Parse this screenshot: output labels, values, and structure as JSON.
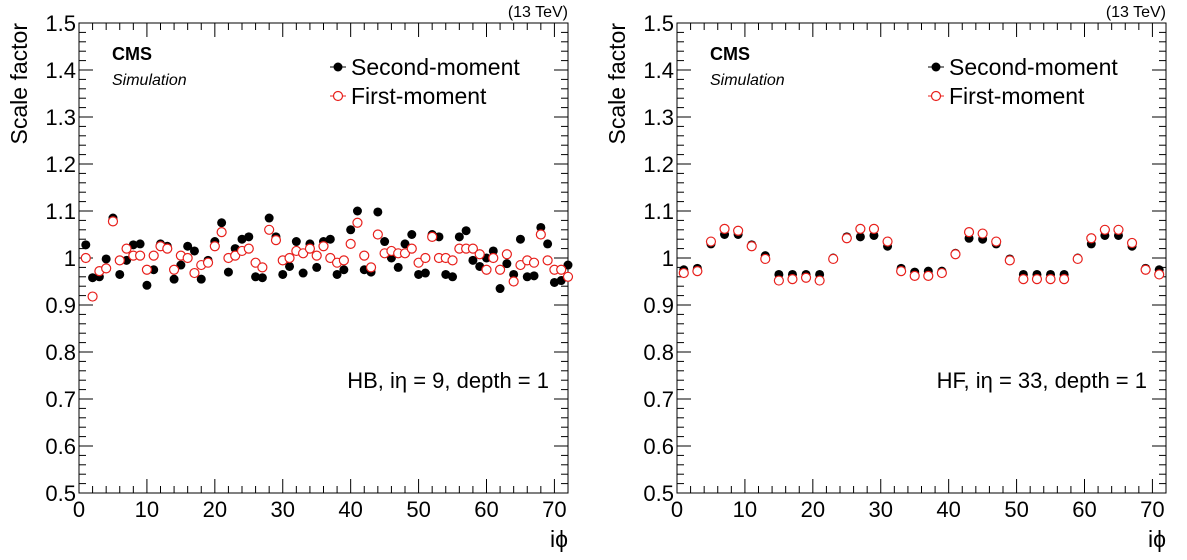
{
  "chart_data": [
    {
      "type": "scatter",
      "energy_label": "(13 TeV)",
      "experiment": "CMS",
      "subtitle": "Simulation",
      "annotation": "HB, iη = 9, depth = 1",
      "xlabel": "iϕ",
      "ylabel": "Scale factor",
      "xlim": [
        0,
        72
      ],
      "ylim": [
        0.5,
        1.5
      ],
      "x_ticks": [
        "0",
        "10",
        "20",
        "30",
        "40",
        "50",
        "60",
        "70"
      ],
      "y_ticks": [
        "0.5",
        "0.6",
        "0.7",
        "0.8",
        "0.9",
        "1",
        "1.1",
        "1.2",
        "1.3",
        "1.4",
        "1.5"
      ],
      "legend_position": "top-right",
      "series": [
        {
          "name": "Second-moment",
          "color": "#000000",
          "marker": "filled-circle",
          "x": [
            1,
            2,
            3,
            4,
            5,
            6,
            7,
            8,
            9,
            10,
            11,
            12,
            13,
            14,
            15,
            16,
            17,
            18,
            19,
            20,
            21,
            22,
            23,
            24,
            25,
            26,
            27,
            28,
            29,
            30,
            31,
            32,
            33,
            34,
            35,
            36,
            37,
            38,
            39,
            40,
            41,
            42,
            43,
            44,
            45,
            46,
            47,
            48,
            49,
            50,
            51,
            52,
            53,
            54,
            55,
            56,
            57,
            58,
            59,
            60,
            61,
            62,
            63,
            64,
            65,
            66,
            67,
            68,
            69,
            70,
            71,
            72
          ],
          "values": [
            1.028,
            0.958,
            0.96,
            0.998,
            1.085,
            0.965,
            0.995,
            1.028,
            1.03,
            0.942,
            0.975,
            1.03,
            1.025,
            0.955,
            0.985,
            1.025,
            1.015,
            0.955,
            0.995,
            1.035,
            1.075,
            0.97,
            1.02,
            1.04,
            1.045,
            0.96,
            0.958,
            1.085,
            1.045,
            0.965,
            0.982,
            1.035,
            0.968,
            1.03,
            0.98,
            1.035,
            1.04,
            0.965,
            0.975,
            1.06,
            1.1,
            0.975,
            0.97,
            1.098,
            1.035,
            1.0,
            0.98,
            1.03,
            1.05,
            0.965,
            0.968,
            1.05,
            1.045,
            0.965,
            0.96,
            1.045,
            1.058,
            0.995,
            0.982,
            1.0,
            1.015,
            0.935,
            0.988,
            0.965,
            1.04,
            0.96,
            0.962,
            1.065,
            1.03,
            0.948,
            0.952,
            0.985
          ]
        },
        {
          "name": "First-moment",
          "color": "#e8201c",
          "marker": "open-circle",
          "x": [
            1,
            2,
            3,
            4,
            5,
            6,
            7,
            8,
            9,
            10,
            11,
            12,
            13,
            14,
            15,
            16,
            17,
            18,
            19,
            20,
            21,
            22,
            23,
            24,
            25,
            26,
            27,
            28,
            29,
            30,
            31,
            32,
            33,
            34,
            35,
            36,
            37,
            38,
            39,
            40,
            41,
            42,
            43,
            44,
            45,
            46,
            47,
            48,
            49,
            50,
            51,
            52,
            53,
            54,
            55,
            56,
            57,
            58,
            59,
            60,
            61,
            62,
            63,
            64,
            65,
            66,
            67,
            68,
            69,
            70,
            71,
            72
          ],
          "values": [
            1.0,
            0.918,
            0.972,
            0.978,
            1.078,
            0.995,
            1.02,
            1.005,
            1.005,
            0.975,
            1.005,
            1.025,
            1.02,
            0.975,
            1.005,
            1.0,
            0.968,
            0.985,
            0.99,
            1.025,
            1.055,
            1.0,
            1.005,
            1.015,
            1.02,
            0.99,
            0.98,
            1.06,
            1.038,
            0.995,
            1.0,
            1.015,
            1.01,
            1.02,
            1.005,
            1.025,
            1.0,
            0.99,
            0.995,
            1.03,
            1.075,
            1.005,
            0.98,
            1.05,
            1.01,
            1.015,
            1.01,
            1.01,
            1.02,
            0.99,
            1.0,
            1.045,
            1.0,
            1.0,
            0.995,
            1.02,
            1.02,
            1.02,
            1.008,
            0.975,
            1.0,
            0.975,
            1.008,
            0.95,
            0.985,
            0.995,
            0.99,
            1.05,
            0.995,
            0.975,
            0.975,
            0.96
          ]
        }
      ]
    },
    {
      "type": "scatter",
      "energy_label": "(13 TeV)",
      "experiment": "CMS",
      "subtitle": "Simulation",
      "annotation": "HF, iη = 33, depth = 1",
      "xlabel": "iϕ",
      "ylabel": "Scale factor",
      "xlim": [
        0,
        72
      ],
      "ylim": [
        0.5,
        1.5
      ],
      "x_ticks": [
        "0",
        "10",
        "20",
        "30",
        "40",
        "50",
        "60",
        "70"
      ],
      "y_ticks": [
        "0.5",
        "0.6",
        "0.7",
        "0.8",
        "0.9",
        "1",
        "1.1",
        "1.2",
        "1.3",
        "1.4",
        "1.5"
      ],
      "legend_position": "top-right",
      "series": [
        {
          "name": "Second-moment",
          "color": "#000000",
          "marker": "filled-circle",
          "x": [
            1,
            3,
            5,
            7,
            9,
            11,
            13,
            15,
            17,
            19,
            21,
            23,
            25,
            27,
            29,
            31,
            33,
            35,
            37,
            39,
            41,
            43,
            45,
            47,
            49,
            51,
            53,
            55,
            57,
            59,
            61,
            63,
            65,
            67,
            69,
            71
          ],
          "values": [
            0.975,
            0.978,
            1.03,
            1.05,
            1.05,
            1.028,
            1.005,
            0.965,
            0.965,
            0.965,
            0.965,
            1.0,
            1.045,
            1.045,
            1.048,
            1.025,
            0.978,
            0.97,
            0.972,
            0.972,
            1.01,
            1.042,
            1.04,
            1.03,
            0.998,
            0.965,
            0.965,
            0.965,
            0.965,
            1.0,
            1.03,
            1.048,
            1.048,
            1.025,
            0.978,
            0.975
          ]
        },
        {
          "name": "First-moment",
          "color": "#e8201c",
          "marker": "open-circle",
          "x": [
            1,
            3,
            5,
            7,
            9,
            11,
            13,
            15,
            17,
            19,
            21,
            23,
            25,
            27,
            29,
            31,
            33,
            35,
            37,
            39,
            41,
            43,
            45,
            47,
            49,
            51,
            53,
            55,
            57,
            59,
            61,
            63,
            65,
            67,
            69,
            71
          ],
          "values": [
            0.968,
            0.972,
            1.035,
            1.062,
            1.058,
            1.025,
            0.998,
            0.952,
            0.955,
            0.958,
            0.952,
            0.998,
            1.042,
            1.062,
            1.062,
            1.035,
            0.972,
            0.962,
            0.962,
            0.968,
            1.008,
            1.055,
            1.052,
            1.035,
            0.995,
            0.955,
            0.955,
            0.955,
            0.955,
            0.998,
            1.042,
            1.06,
            1.06,
            1.032,
            0.975,
            0.965
          ]
        }
      ]
    }
  ]
}
